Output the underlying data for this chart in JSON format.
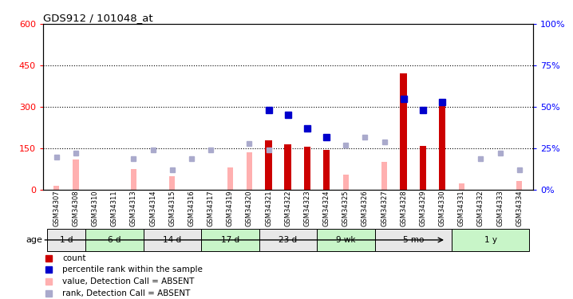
{
  "title": "GDS912 / 101048_at",
  "samples": [
    "GSM34307",
    "GSM34308",
    "GSM34310",
    "GSM34311",
    "GSM34313",
    "GSM34314",
    "GSM34315",
    "GSM34316",
    "GSM34317",
    "GSM34319",
    "GSM34320",
    "GSM34321",
    "GSM34322",
    "GSM34323",
    "GSM34324",
    "GSM34325",
    "GSM34326",
    "GSM34327",
    "GSM34328",
    "GSM34329",
    "GSM34330",
    "GSM34331",
    "GSM34332",
    "GSM34333",
    "GSM34334"
  ],
  "count_present": [
    0,
    0,
    0,
    0,
    0,
    0,
    0,
    0,
    0,
    0,
    0,
    180,
    165,
    155,
    145,
    0,
    0,
    0,
    420,
    160,
    310,
    0,
    0,
    0,
    0
  ],
  "count_absent_value": [
    15,
    110,
    0,
    0,
    75,
    0,
    50,
    0,
    0,
    80,
    135,
    0,
    0,
    0,
    0,
    55,
    0,
    100,
    0,
    0,
    0,
    22,
    0,
    0,
    32
  ],
  "percentile_present_rank": [
    0,
    0,
    0,
    0,
    0,
    0,
    0,
    0,
    0,
    0,
    0,
    48,
    45,
    37,
    32,
    0,
    0,
    0,
    55,
    48,
    53,
    0,
    0,
    0,
    0
  ],
  "percentile_absent_rank": [
    20,
    22,
    0,
    0,
    19,
    24,
    12,
    19,
    24,
    0,
    28,
    24,
    0,
    0,
    0,
    27,
    32,
    29,
    0,
    0,
    0,
    0,
    19,
    22,
    12
  ],
  "age_groups": [
    {
      "label": "1 d",
      "start": 0,
      "end": 2,
      "color": "#e8e8e8"
    },
    {
      "label": "6 d",
      "start": 2,
      "end": 5,
      "color": "#c8f5c8"
    },
    {
      "label": "14 d",
      "start": 5,
      "end": 8,
      "color": "#e8e8e8"
    },
    {
      "label": "17 d",
      "start": 8,
      "end": 11,
      "color": "#c8f5c8"
    },
    {
      "label": "23 d",
      "start": 11,
      "end": 14,
      "color": "#e8e8e8"
    },
    {
      "label": "9 wk",
      "start": 14,
      "end": 17,
      "color": "#c8f5c8"
    },
    {
      "label": "5 mo",
      "start": 17,
      "end": 21,
      "color": "#e8e8e8"
    },
    {
      "label": "1 y",
      "start": 21,
      "end": 25,
      "color": "#c8f5c8"
    }
  ],
  "ylim_left": [
    0,
    600
  ],
  "ylim_right": [
    0,
    100
  ],
  "yticks_left": [
    0,
    150,
    300,
    450,
    600
  ],
  "yticks_right": [
    0,
    25,
    50,
    75,
    100
  ],
  "color_count": "#cc0000",
  "color_percentile": "#0000cc",
  "color_absent_value": "#ffb0b0",
  "color_absent_rank": "#aaaacc",
  "bar_width": 0.55
}
